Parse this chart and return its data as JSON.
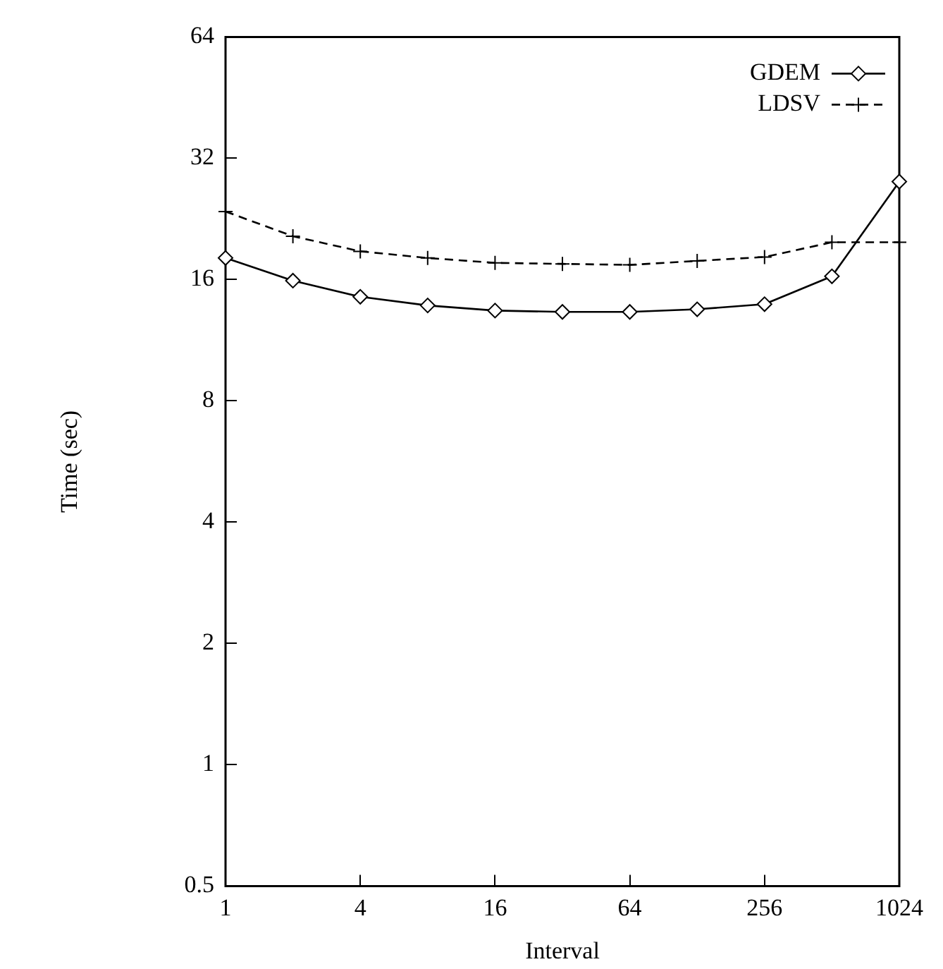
{
  "chart_data": {
    "type": "line",
    "xlabel": "Interval",
    "ylabel": "Time (sec)",
    "x": [
      1,
      2,
      4,
      8,
      16,
      32,
      64,
      128,
      256,
      512,
      1024
    ],
    "series": [
      {
        "name": "GDEM",
        "color": "#000000",
        "marker": "diamond",
        "line_style": "solid",
        "values": [
          18.1,
          15.9,
          14.5,
          13.8,
          13.4,
          13.3,
          13.3,
          13.5,
          13.9,
          16.3,
          28.0
        ]
      },
      {
        "name": "LDSV",
        "color": "#000000",
        "marker": "cross",
        "line_style": "dashed",
        "values": [
          23.6,
          20.5,
          18.8,
          18.1,
          17.6,
          17.5,
          17.4,
          17.8,
          18.2,
          19.8,
          19.8
        ]
      }
    ],
    "log": "xy",
    "xlim": [
      1,
      1024
    ],
    "xticks": [
      1,
      4,
      16,
      64,
      256,
      1024
    ],
    "ylim": [
      0.5,
      64
    ],
    "yticks": [
      0.5,
      1,
      2,
      4,
      8,
      16,
      32,
      64
    ],
    "grid": false,
    "legend": "top right"
  }
}
